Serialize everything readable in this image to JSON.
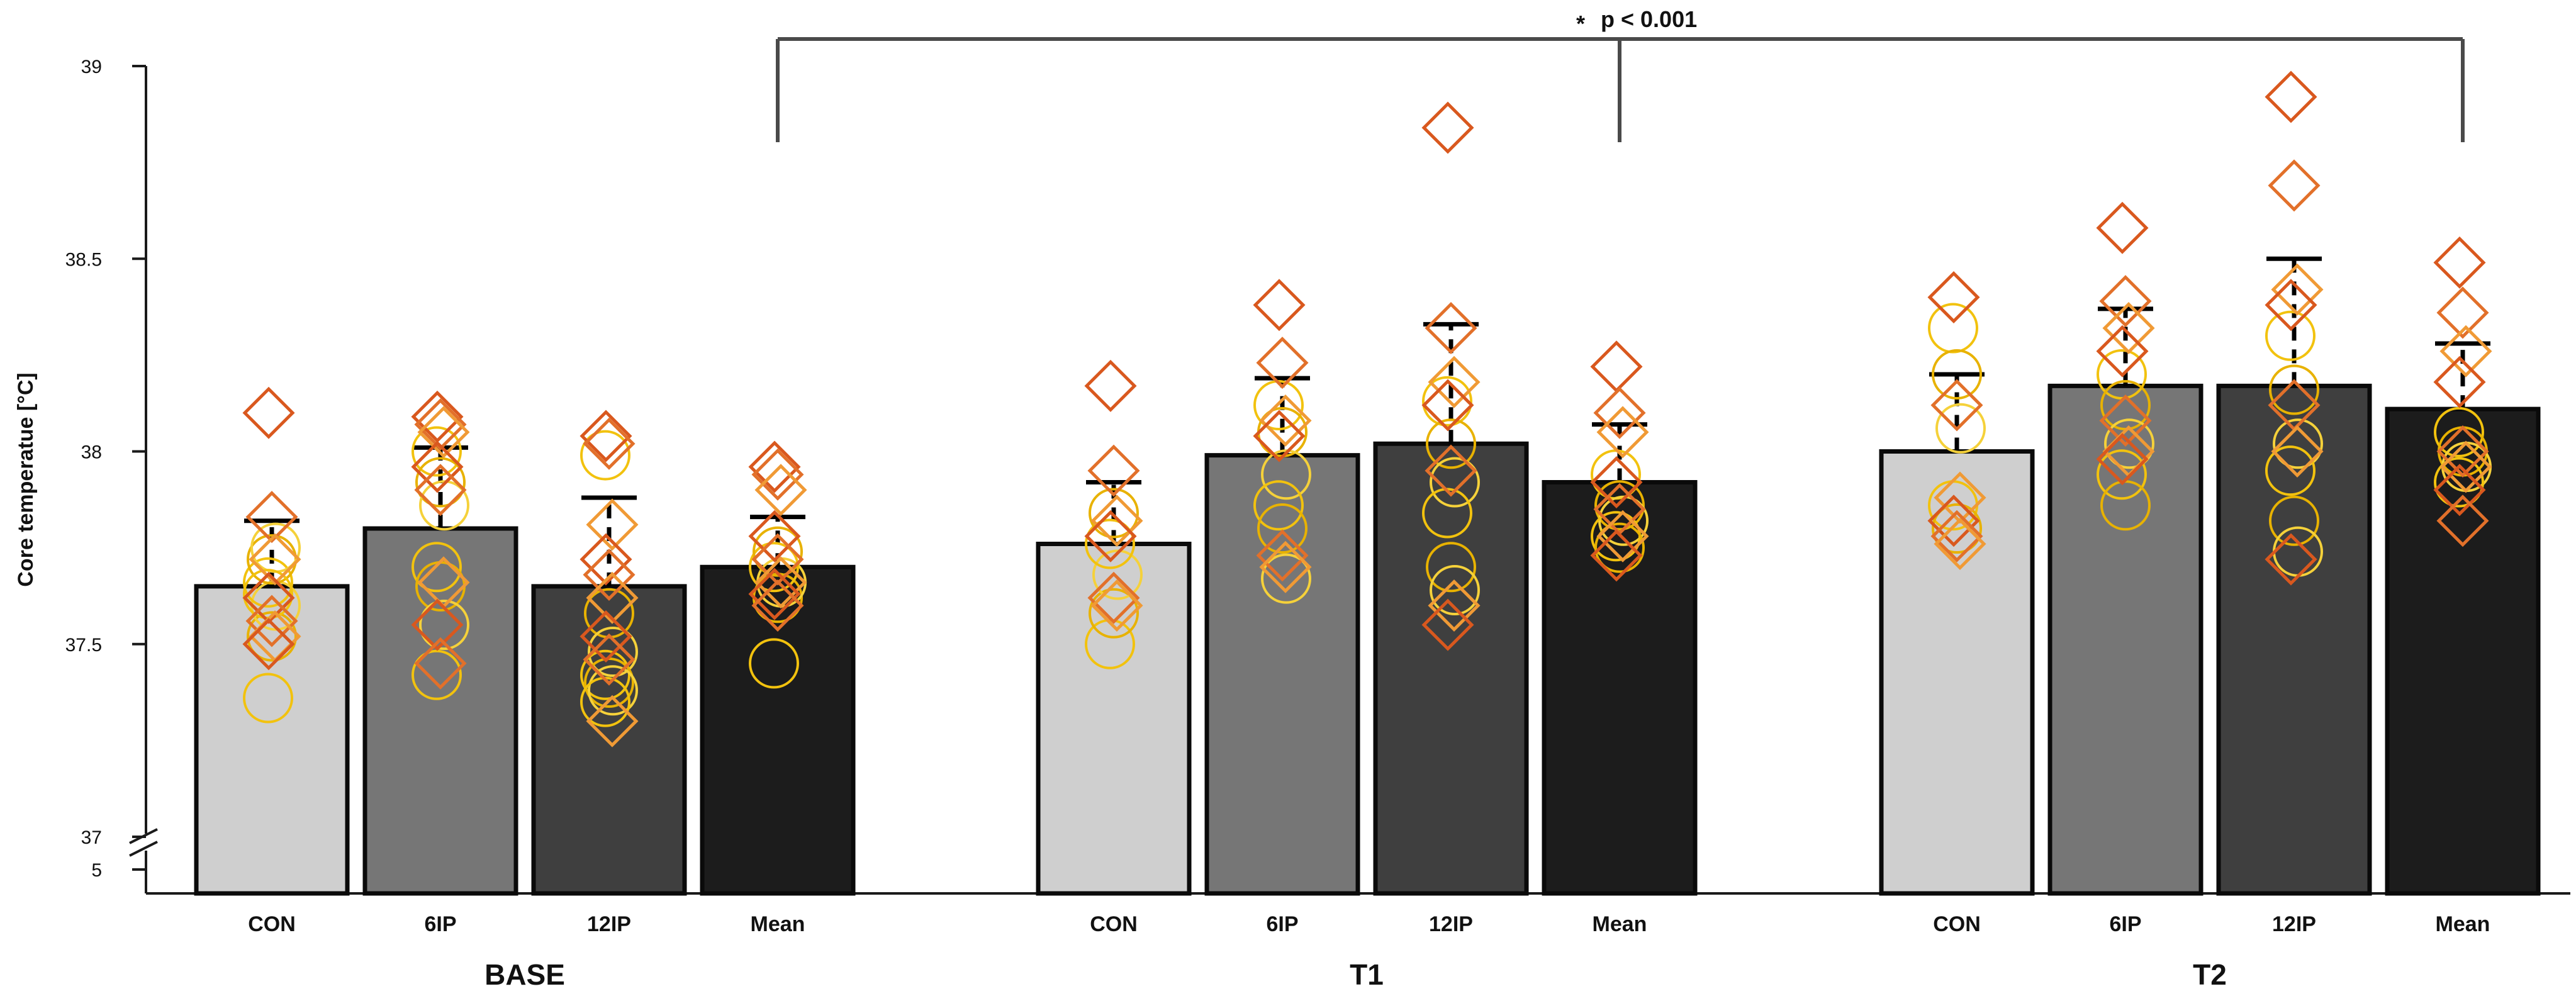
{
  "chart_data": {
    "type": "bar",
    "title": "",
    "xlabel": "",
    "ylabel": "Core temperatue [°C]",
    "ylim": [
      37,
      39
    ],
    "yticks": [
      37,
      37.5,
      38,
      38.5,
      39
    ],
    "ytick_labels": [
      "37",
      "37.5",
      "38",
      "38.5",
      "39"
    ],
    "axis_break_label": "5",
    "groups": [
      {
        "label": "BASE",
        "bars": [
          {
            "category": "CON",
            "mean": 37.65,
            "sd": 0.17,
            "color": "#cfcfcf",
            "diamonds": [
              38.1,
              37.83,
              37.72,
              37.62,
              37.56,
              37.52,
              37.5
            ],
            "circles": [
              37.36,
              37.52,
              37.6,
              37.66,
              37.72,
              37.75,
              37.63
            ]
          },
          {
            "category": "6IP",
            "mean": 37.8,
            "sd": 0.21,
            "color": "#767676",
            "diamonds": [
              38.09,
              38.07,
              38.05,
              37.96,
              37.9,
              37.66,
              37.55,
              37.45
            ],
            "circles": [
              38.0,
              37.92,
              37.86,
              37.7,
              37.65,
              37.55,
              37.42
            ]
          },
          {
            "category": "12IP",
            "mean": 37.65,
            "sd": 0.23,
            "color": "#3f3f3f",
            "diamonds": [
              38.04,
              38.02,
              37.81,
              37.72,
              37.68,
              37.62,
              37.52,
              37.46,
              37.3
            ],
            "circles": [
              37.99,
              37.58,
              37.48,
              37.42,
              37.4,
              37.38,
              37.35
            ]
          },
          {
            "category": "Mean",
            "mean": 37.7,
            "sd": 0.13,
            "color": "#1c1c1c",
            "diamonds": [
              37.96,
              37.94,
              37.9,
              37.78,
              37.72,
              37.66,
              37.63,
              37.6
            ],
            "circles": [
              37.45,
              37.62,
              37.66,
              37.7,
              37.74
            ]
          }
        ]
      },
      {
        "label": "T1",
        "bars": [
          {
            "category": "CON",
            "mean": 37.76,
            "sd": 0.16,
            "color": "#cfcfcf",
            "diamonds": [
              38.17,
              37.95,
              37.82,
              37.78,
              37.62,
              37.6
            ],
            "circles": [
              37.5,
              37.58,
              37.68,
              37.76,
              37.84
            ]
          },
          {
            "category": "6IP",
            "mean": 37.99,
            "sd": 0.2,
            "color": "#767676",
            "diamonds": [
              38.38,
              38.23,
              38.08,
              38.04,
              37.73,
              37.7
            ],
            "circles": [
              38.12,
              38.05,
              37.94,
              37.86,
              37.8,
              37.67
            ]
          },
          {
            "category": "12IP",
            "mean": 38.02,
            "sd": 0.31,
            "color": "#3f3f3f",
            "diamonds": [
              38.84,
              38.32,
              38.18,
              38.12,
              37.95,
              37.6,
              37.55
            ],
            "circles": [
              38.13,
              38.02,
              37.92,
              37.84,
              37.7,
              37.64
            ]
          },
          {
            "category": "Mean",
            "mean": 37.92,
            "sd": 0.15,
            "color": "#1c1c1c",
            "diamonds": [
              38.22,
              38.1,
              38.05,
              37.92,
              37.85,
              37.78,
              37.73
            ],
            "circles": [
              37.94,
              37.86,
              37.82,
              37.78,
              37.75
            ]
          }
        ]
      },
      {
        "label": "T2",
        "bars": [
          {
            "category": "CON",
            "mean": 38.0,
            "sd": 0.2,
            "color": "#cfcfcf",
            "diamonds": [
              38.4,
              38.12,
              37.88,
              37.82,
              37.78,
              37.76
            ],
            "circles": [
              38.32,
              38.2,
              38.06,
              37.86,
              37.8
            ]
          },
          {
            "category": "6IP",
            "mean": 38.17,
            "sd": 0.2,
            "color": "#767676",
            "diamonds": [
              38.58,
              38.39,
              38.32,
              38.26,
              38.08,
              38.0,
              37.98
            ],
            "circles": [
              38.2,
              38.12,
              38.02,
              37.94,
              37.86
            ]
          },
          {
            "category": "12IP",
            "mean": 38.17,
            "sd": 0.33,
            "color": "#3f3f3f",
            "diamonds": [
              38.92,
              38.69,
              38.42,
              38.38,
              38.12,
              38.0,
              37.72
            ],
            "circles": [
              38.3,
              38.16,
              38.02,
              37.95,
              37.82,
              37.74
            ]
          },
          {
            "category": "Mean",
            "mean": 38.11,
            "sd": 0.17,
            "color": "#1c1c1c",
            "diamonds": [
              38.49,
              38.36,
              38.26,
              38.18,
              38.0,
              37.96,
              37.9,
              37.82
            ],
            "circles": [
              38.05,
              38.0,
              37.96,
              37.92
            ]
          }
        ]
      }
    ],
    "significance": {
      "label": "p < 0.001",
      "marker": "*",
      "spans": [
        "BASE",
        "T1",
        "T2"
      ]
    },
    "marker_colors": {
      "diamond_stroke": [
        "#d9581e",
        "#e2702a",
        "#f09a35"
      ],
      "circle_stroke": [
        "#f2c20e",
        "#e8b200",
        "#f5d13a"
      ]
    }
  }
}
